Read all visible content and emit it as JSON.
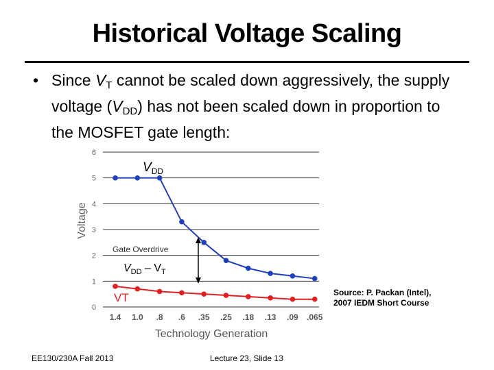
{
  "slide": {
    "title": "Historical Voltage Scaling",
    "bullet_symbol": "•",
    "bullet_parts": {
      "a": "Since ",
      "vt_v": "V",
      "vt_sub": "T",
      "b": " cannot be scaled down aggressively, the supply voltage (",
      "vdd_v": "V",
      "vdd_sub": "DD",
      "c": ") has not been scaled down in proportion to the MOSFET gate length:"
    },
    "source_line1": "Source: P. Packan (Intel),",
    "source_line2": "2007 IEDM Short Course",
    "footer_left": "EE130/230A Fall 2013",
    "footer_center": "Lecture 23, Slide 13"
  },
  "colors": {
    "vdd_series": "#1f3fbf",
    "vt_series": "#e02020",
    "annotation": "#000000"
  },
  "chart_data": {
    "type": "line",
    "xlabel": "Technology Generation",
    "ylabel": "Voltage",
    "categories": [
      "1.4",
      "1.0",
      ".8",
      ".6",
      ".35",
      ".25",
      ".18",
      ".13",
      ".09",
      ".065"
    ],
    "ylim": [
      0,
      6
    ],
    "yticks": [
      "0",
      "1",
      "2",
      "3",
      "4",
      "5",
      "6"
    ],
    "grid": true,
    "series": [
      {
        "name": "VDD",
        "values": [
          5.0,
          5.0,
          5.0,
          3.3,
          2.5,
          1.8,
          1.5,
          1.3,
          1.2,
          1.1
        ]
      },
      {
        "name": "VT",
        "values": [
          0.8,
          0.7,
          0.6,
          0.55,
          0.5,
          0.45,
          0.4,
          0.35,
          0.3,
          0.3
        ]
      }
    ],
    "annotations": {
      "vdd_label_v": "V",
      "vdd_label_sub": "DD",
      "gate_overdrive": "Gate Overdrive",
      "overdrive_v": "V",
      "overdrive_sub": "DD",
      "overdrive_mid": " – V",
      "overdrive_sub2": "T",
      "vt_label": "VT"
    }
  }
}
